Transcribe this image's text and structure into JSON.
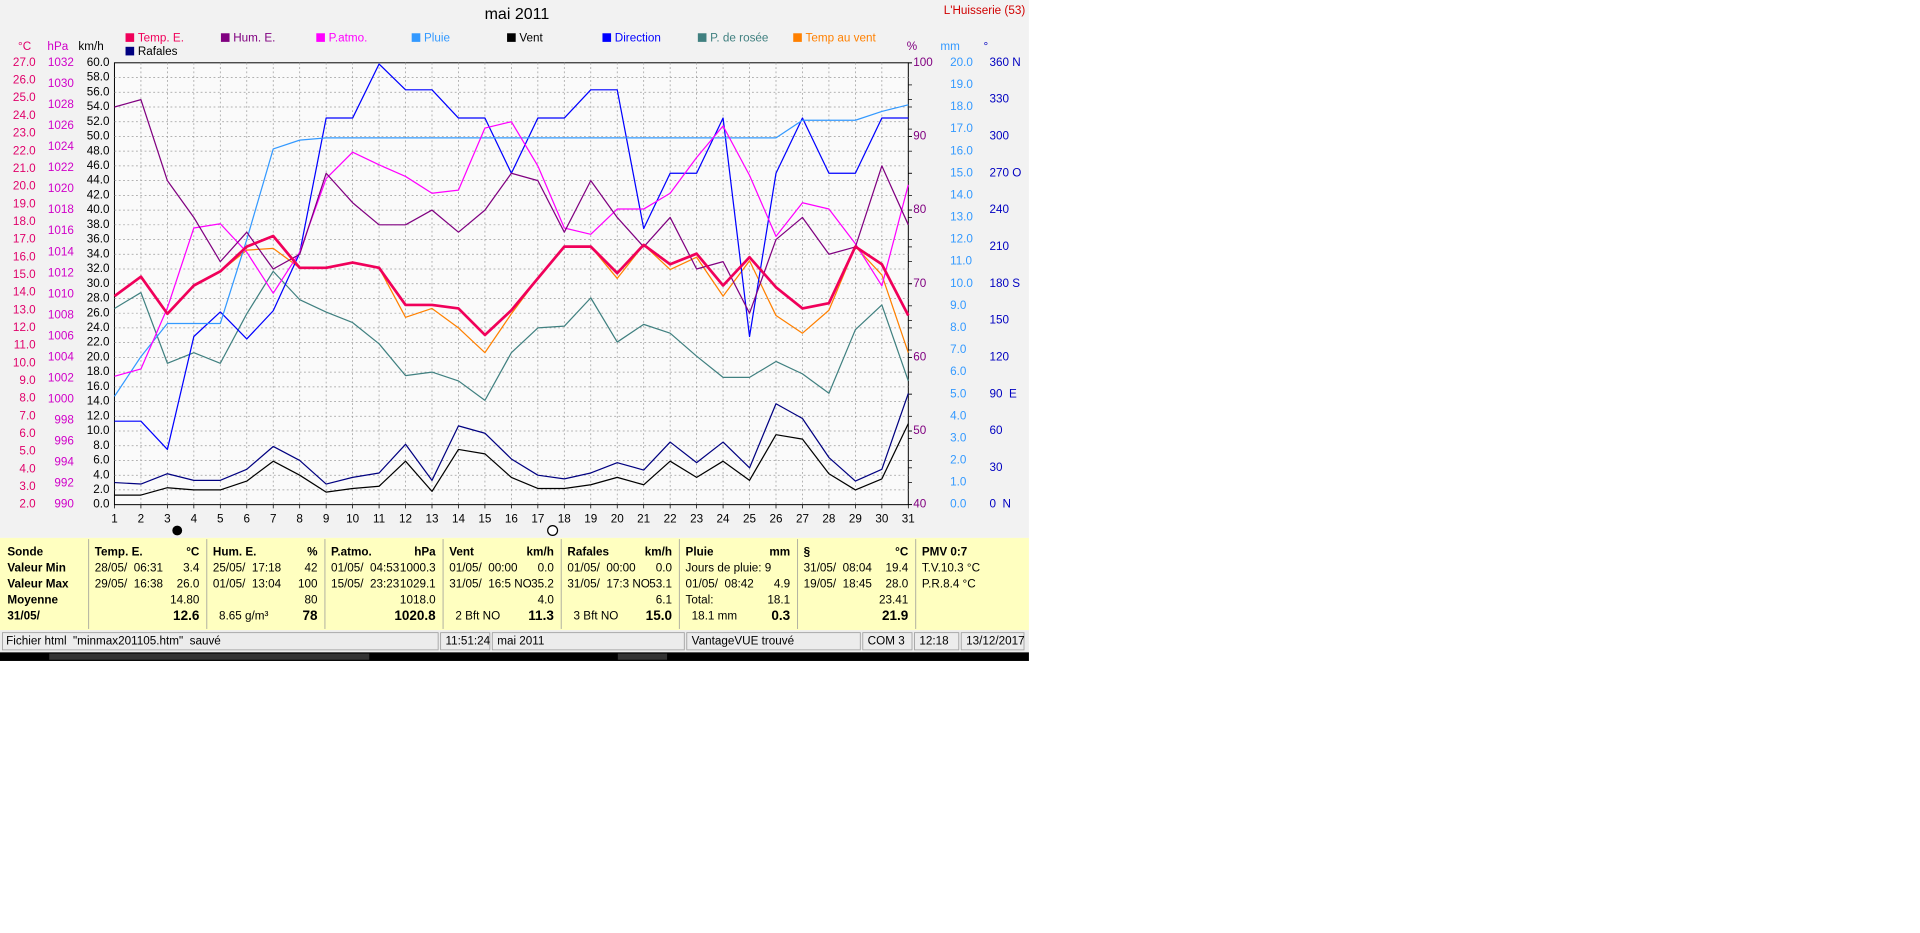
{
  "chart_data": {
    "type": "line",
    "title": "mai 2011",
    "station": "L'Huisserie (53)",
    "x": [
      1,
      2,
      3,
      4,
      5,
      6,
      7,
      8,
      9,
      10,
      11,
      12,
      13,
      14,
      15,
      16,
      17,
      18,
      19,
      20,
      21,
      22,
      23,
      24,
      25,
      26,
      27,
      28,
      29,
      30,
      31
    ],
    "xlim": [
      1,
      31
    ],
    "grid": true,
    "y_axes": [
      {
        "label": "°C",
        "color": "#e0006a",
        "ylim": [
          2,
          27
        ],
        "yticks": [
          {
            "value": 2,
            "label": "2.0"
          },
          {
            "value": 3,
            "label": "3.0"
          },
          {
            "value": 4,
            "label": "4.0"
          },
          {
            "value": 5,
            "label": "5.0"
          },
          {
            "value": 6,
            "label": "6.0"
          },
          {
            "value": 7,
            "label": "7.0"
          },
          {
            "value": 8,
            "label": "8.0"
          },
          {
            "value": 9,
            "label": "9.0"
          },
          {
            "value": 10,
            "label": "10.0"
          },
          {
            "value": 11,
            "label": "11.0"
          },
          {
            "value": 12,
            "label": "12.0"
          },
          {
            "value": 13,
            "label": "13.0"
          },
          {
            "value": 14,
            "label": "14.0"
          },
          {
            "value": 15,
            "label": "15.0"
          },
          {
            "value": 16,
            "label": "16.0"
          },
          {
            "value": 17,
            "label": "17.0"
          },
          {
            "value": 18,
            "label": "18.0"
          },
          {
            "value": 19,
            "label": "19.0"
          },
          {
            "value": 20,
            "label": "20.0"
          },
          {
            "value": 21,
            "label": "21.0"
          },
          {
            "value": 22,
            "label": "22.0"
          },
          {
            "value": 23,
            "label": "23.0"
          },
          {
            "value": 24,
            "label": "24.0"
          },
          {
            "value": 25,
            "label": "25.0"
          },
          {
            "value": 26,
            "label": "26.0"
          },
          {
            "value": 27,
            "label": "27.0"
          }
        ]
      },
      {
        "label": "hPa",
        "color": "#d000c8",
        "ylim": [
          990,
          1032
        ],
        "yticks": [
          990,
          992,
          994,
          996,
          998,
          1000,
          1002,
          1004,
          1006,
          1008,
          1010,
          1012,
          1014,
          1016,
          1018,
          1020,
          1022,
          1024,
          1026,
          1028,
          1030,
          1032
        ]
      },
      {
        "label": "km/h",
        "color": "#000000",
        "ylim": [
          0,
          60
        ],
        "yticks": [
          {
            "value": 0,
            "label": "0.0"
          },
          {
            "value": 2,
            "label": "2.0"
          },
          {
            "value": 4,
            "label": "4.0"
          },
          {
            "value": 6,
            "label": "6.0"
          },
          {
            "value": 8,
            "label": "8.0"
          },
          {
            "value": 10,
            "label": "10.0"
          },
          {
            "value": 12,
            "label": "12.0"
          },
          {
            "value": 14,
            "label": "14.0"
          },
          {
            "value": 16,
            "label": "16.0"
          },
          {
            "value": 18,
            "label": "18.0"
          },
          {
            "value": 20,
            "label": "20.0"
          },
          {
            "value": 22,
            "label": "22.0"
          },
          {
            "value": 24,
            "label": "24.0"
          },
          {
            "value": 26,
            "label": "26.0"
          },
          {
            "value": 28,
            "label": "28.0"
          },
          {
            "value": 30,
            "label": "30.0"
          },
          {
            "value": 32,
            "label": "32.0"
          },
          {
            "value": 34,
            "label": "34.0"
          },
          {
            "value": 36,
            "label": "36.0"
          },
          {
            "value": 38,
            "label": "38.0"
          },
          {
            "value": 40,
            "label": "40.0"
          },
          {
            "value": 42,
            "label": "42.0"
          },
          {
            "value": 44,
            "label": "44.0"
          },
          {
            "value": 46,
            "label": "46.0"
          },
          {
            "value": 48,
            "label": "48.0"
          },
          {
            "value": 50,
            "label": "50.0"
          },
          {
            "value": 52,
            "label": "52.0"
          },
          {
            "value": 54,
            "label": "54.0"
          },
          {
            "value": 56,
            "label": "56.0"
          },
          {
            "value": 58,
            "label": "58.0"
          },
          {
            "value": 60,
            "label": "60.0"
          }
        ]
      },
      {
        "label": "%",
        "color": "#800080",
        "ylim": [
          40,
          100
        ],
        "yticks": [
          40,
          50,
          60,
          70,
          80,
          90,
          100
        ]
      },
      {
        "label": "mm",
        "color": "#3399ff",
        "ylim": [
          0,
          20
        ],
        "yticks": [
          {
            "value": 0,
            "label": "0.0"
          },
          {
            "value": 1,
            "label": "1.0"
          },
          {
            "value": 2,
            "label": "2.0"
          },
          {
            "value": 3,
            "label": "3.0"
          },
          {
            "value": 4,
            "label": "4.0"
          },
          {
            "value": 5,
            "label": "5.0"
          },
          {
            "value": 6,
            "label": "6.0"
          },
          {
            "value": 7,
            "label": "7.0"
          },
          {
            "value": 8,
            "label": "8.0"
          },
          {
            "value": 9,
            "label": "9.0"
          },
          {
            "value": 10,
            "label": "10.0"
          },
          {
            "value": 11,
            "label": "11.0"
          },
          {
            "value": 12,
            "label": "12.0"
          },
          {
            "value": 13,
            "label": "13.0"
          },
          {
            "value": 14,
            "label": "14.0"
          },
          {
            "value": 15,
            "label": "15.0"
          },
          {
            "value": 16,
            "label": "16.0"
          },
          {
            "value": 17,
            "label": "17.0"
          },
          {
            "value": 18,
            "label": "18.0"
          },
          {
            "value": 19,
            "label": "19.0"
          },
          {
            "value": 20,
            "label": "20.0"
          }
        ]
      },
      {
        "label": "°",
        "color": "#0000c0",
        "ylim": [
          0,
          360
        ],
        "yticks": [
          {
            "value": 0,
            "label": "0  N"
          },
          30,
          60,
          {
            "value": 90,
            "label": "90  E"
          },
          120,
          150,
          {
            "value": 180,
            "label": "180 S"
          },
          210,
          240,
          {
            "value": 270,
            "label": "270 O"
          },
          300,
          330,
          {
            "value": 360,
            "label": "360 N"
          }
        ]
      }
    ],
    "series": [
      {
        "name": "Temp. E.",
        "color": "#f0005a",
        "axis": 0,
        "values": [
          13.8,
          14.9,
          12.8,
          14.4,
          15.2,
          16.6,
          17.2,
          15.4,
          15.4,
          15.7,
          15.4,
          13.3,
          13.3,
          13.1,
          11.6,
          13.0,
          14.8,
          16.6,
          16.6,
          15.1,
          16.7,
          15.6,
          16.2,
          14.4,
          16.0,
          14.3,
          13.1,
          13.4,
          16.6,
          15.6,
          12.7
        ]
      },
      {
        "name": "Hum. E.",
        "color": "#800080",
        "axis": 3,
        "values": [
          94,
          95,
          84,
          79,
          73,
          77,
          72,
          74,
          85,
          81,
          78,
          78,
          80,
          77,
          80,
          85,
          84,
          77,
          84,
          79,
          75,
          79,
          72,
          73,
          66,
          76,
          79,
          74,
          75,
          86,
          78
        ]
      },
      {
        "name": "P.atmo.",
        "color": "#ff00ff",
        "axis": 1,
        "values": [
          1002.2,
          1002.9,
          1008.7,
          1016.3,
          1016.7,
          1014.0,
          1010.1,
          1014.0,
          1021.0,
          1023.5,
          1022.3,
          1021.2,
          1019.6,
          1019.9,
          1025.8,
          1026.4,
          1022.2,
          1016.3,
          1015.7,
          1018.1,
          1018.1,
          1019.6,
          1023.0,
          1026.0,
          1021.3,
          1015.5,
          1018.7,
          1018.1,
          1014.8,
          1010.8,
          1020.4
        ]
      },
      {
        "name": "Pluie",
        "color": "#3399ff",
        "axis": 4,
        "values": [
          4.9,
          6.7,
          8.2,
          8.2,
          8.2,
          12.0,
          16.1,
          16.5,
          16.6,
          16.6,
          16.6,
          16.6,
          16.6,
          16.6,
          16.6,
          16.6,
          16.6,
          16.6,
          16.6,
          16.6,
          16.6,
          16.6,
          16.6,
          16.6,
          16.6,
          16.6,
          17.4,
          17.4,
          17.4,
          17.8,
          18.1
        ]
      },
      {
        "name": "Vent",
        "color": "#000000",
        "axis": 2,
        "values": [
          1.3,
          1.3,
          2.3,
          2.0,
          2.0,
          3.2,
          5.9,
          4.0,
          1.7,
          2.2,
          2.5,
          5.9,
          1.8,
          7.5,
          6.9,
          3.7,
          2.2,
          2.2,
          2.7,
          3.7,
          2.7,
          5.9,
          3.7,
          5.9,
          3.3,
          9.5,
          8.9,
          4.2,
          2.0,
          3.5,
          11.0
        ]
      },
      {
        "name": "Direction",
        "color": "#0000ff",
        "axis": 5,
        "values": [
          68,
          68,
          45,
          137,
          157,
          135,
          158,
          205,
          315,
          315,
          359,
          338,
          338,
          315,
          315,
          270,
          315,
          315,
          338,
          338,
          225,
          270,
          270,
          315,
          137,
          270,
          315,
          270,
          270,
          315,
          315
        ]
      },
      {
        "name": "P. de rosée",
        "color": "#408080",
        "axis": 0,
        "values": [
          13.1,
          14.0,
          10.0,
          10.6,
          10.0,
          12.8,
          15.2,
          13.6,
          12.9,
          12.3,
          11.1,
          9.3,
          9.5,
          9.0,
          7.9,
          10.6,
          12.0,
          12.1,
          13.7,
          11.2,
          12.2,
          11.7,
          10.4,
          9.2,
          9.2,
          10.1,
          9.4,
          8.3,
          11.9,
          13.3,
          9.0
        ]
      },
      {
        "name": "Temp au vent",
        "color": "#ff8000",
        "axis": 0,
        "values": [
          13.8,
          14.9,
          12.8,
          14.4,
          15.2,
          16.4,
          16.5,
          15.4,
          15.4,
          15.7,
          15.4,
          12.6,
          13.1,
          12.0,
          10.6,
          12.8,
          14.8,
          16.6,
          16.6,
          14.8,
          16.7,
          15.3,
          16.0,
          13.8,
          15.8,
          12.7,
          11.7,
          13.0,
          16.6,
          15.0,
          10.6
        ]
      },
      {
        "name": "Rafales",
        "color": "#000080",
        "axis": 2,
        "values": [
          3.0,
          2.8,
          4.2,
          3.3,
          3.3,
          4.8,
          7.9,
          6.0,
          2.8,
          3.7,
          4.3,
          8.2,
          3.3,
          10.7,
          9.7,
          6.2,
          4.0,
          3.5,
          4.3,
          5.7,
          4.7,
          8.5,
          5.7,
          8.5,
          5.0,
          13.7,
          11.7,
          6.4,
          3.2,
          4.8,
          15.1
        ]
      }
    ]
  },
  "summary_table": {
    "row_labels": [
      "Sonde",
      "Valeur Min",
      "Valeur Max",
      "Moyenne",
      "31/05/"
    ],
    "columns": [
      {
        "title": "Temp. E.",
        "unit": "°C",
        "cells": [
          [
            "28/05/  06:31",
            "3.4"
          ],
          [
            "29/05/  16:38",
            "26.0"
          ],
          [
            null,
            "14.80"
          ],
          [
            null,
            "12.6"
          ]
        ]
      },
      {
        "title": "Hum. E.",
        "unit": "%",
        "cells": [
          [
            "25/05/  17:18",
            "42"
          ],
          [
            "01/05/  13:04",
            "100"
          ],
          [
            null,
            "80"
          ],
          [
            "8.65 g/m³",
            "78"
          ]
        ]
      },
      {
        "title": "P.atmo.",
        "unit": "hPa",
        "cells": [
          [
            "01/05/  04:53",
            "1000.3"
          ],
          [
            "15/05/  23:23",
            "1029.1"
          ],
          [
            null,
            "1018.0"
          ],
          [
            null,
            "1020.8"
          ]
        ]
      },
      {
        "title": "Vent",
        "unit": "km/h",
        "cells": [
          [
            "01/05/  00:00",
            "0.0"
          ],
          [
            "31/05/  16:5 NO",
            "35.2"
          ],
          [
            null,
            "4.0"
          ],
          [
            "2 Bft NO",
            "11.3"
          ]
        ]
      },
      {
        "title": "Rafales",
        "unit": "km/h",
        "cells": [
          [
            "01/05/  00:00",
            "0.0"
          ],
          [
            "31/05/  17:3 NO",
            "53.1"
          ],
          [
            null,
            "6.1"
          ],
          [
            "3 Bft NO",
            "15.0"
          ]
        ]
      },
      {
        "title": "Pluie",
        "unit": "mm",
        "cells": [
          [
            "Jours de pluie: 9"
          ],
          [
            "01/05/  08:42",
            "4.9"
          ],
          [
            "Total:",
            "18.1"
          ],
          [
            "18.1 mm",
            "0.3"
          ]
        ]
      },
      {
        "title": "§",
        "unit": "°C",
        "cells": [
          [
            "31/05/  08:04",
            "19.4"
          ],
          [
            "19/05/  18:45",
            "28.0"
          ],
          [
            null,
            "23.41"
          ],
          [
            null,
            "21.9"
          ]
        ]
      },
      {
        "title": "PMV 0:7",
        "cells": [
          [
            "T.V.10.3 °C"
          ],
          [
            "P.R.8.4 °C"
          ]
        ]
      }
    ]
  },
  "status_bar": [
    "Fichier html  \"minmax201105.htm\"  sauvé",
    "11:51:24",
    "mai 2011",
    "VantageVUE trouvé",
    "COM 3",
    "12:18",
    "13/12/2017"
  ]
}
